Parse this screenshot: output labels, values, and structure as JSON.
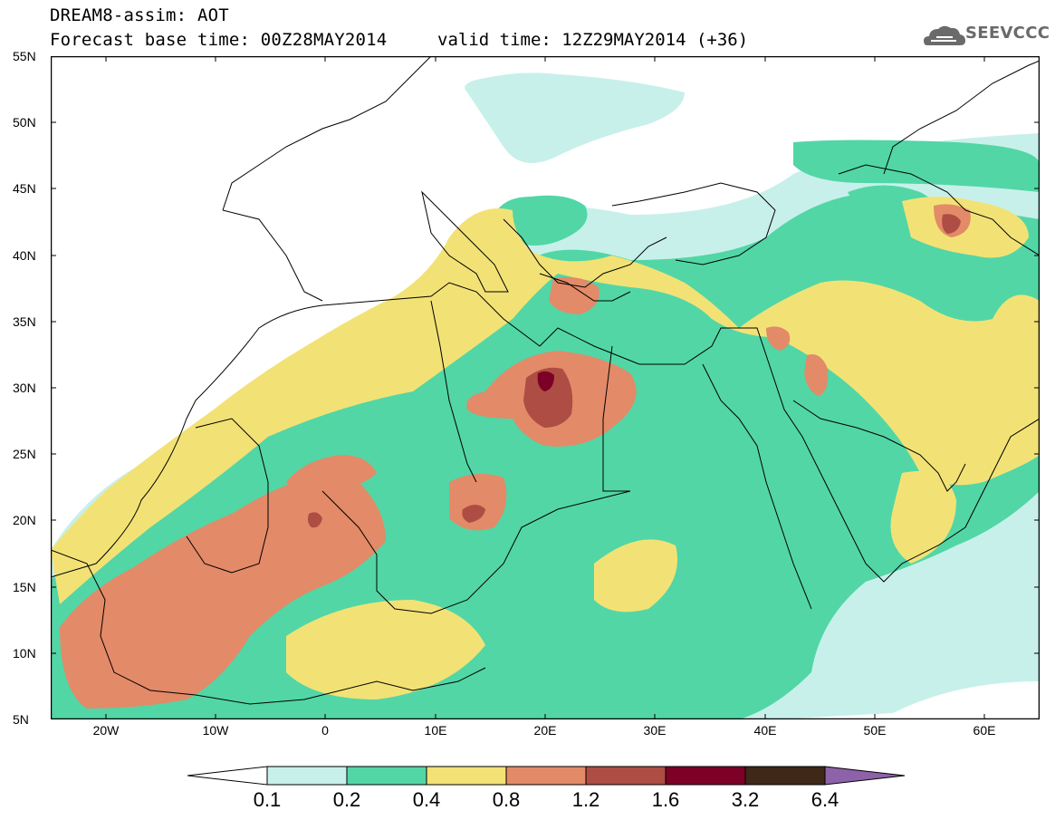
{
  "header": {
    "title_line1": "DREAM8-assim: AOT",
    "title_line2": "Forecast base time: 00Z28MAY2014",
    "valid_time": "valid time: 12Z29MAY2014 (+36)",
    "logo_text": "SEEVCCC"
  },
  "map": {
    "lon_range": [
      -25,
      65
    ],
    "lat_range": [
      5,
      55
    ],
    "lat_labels": [
      "55N",
      "50N",
      "45N",
      "40N",
      "35N",
      "30N",
      "25N",
      "20N",
      "15N",
      "10N",
      "5N"
    ],
    "lon_labels": [
      "20W",
      "10W",
      "0",
      "10E",
      "20E",
      "30E",
      "40E",
      "50E",
      "60E"
    ]
  },
  "legend": {
    "levels": [
      "0.1",
      "0.2",
      "0.4",
      "0.8",
      "1.2",
      "1.6",
      "3.2",
      "6.4"
    ],
    "colors": [
      "#c8f0ea",
      "#52d6a6",
      "#f2e276",
      "#e38a68",
      "#ae4d43",
      "#7d0026",
      "#3f2818",
      "#8d62a8"
    ],
    "below_color": "#ffffff"
  },
  "colors": {
    "coast": "#000000",
    "frame": "#000000"
  }
}
